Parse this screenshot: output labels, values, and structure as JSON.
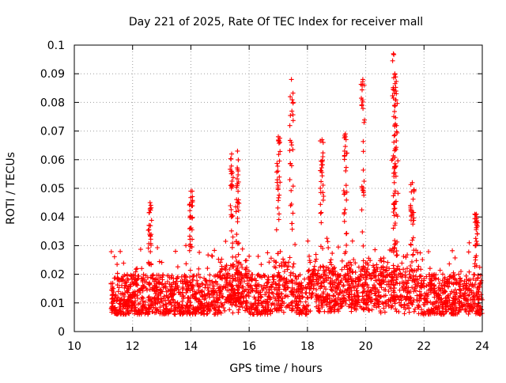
{
  "chart_data": {
    "type": "scatter",
    "title": "Day 221 of 2025, Rate Of TEC Index for receiver mall",
    "xlabel": "GPS time / hours",
    "ylabel": "ROTI / TECUs",
    "xlim": [
      10,
      24
    ],
    "ylim": [
      0,
      0.1
    ],
    "xticks": [
      "10",
      "12",
      "14",
      "16",
      "18",
      "20",
      "22",
      "24"
    ],
    "yticks": [
      "0",
      "0.01",
      "0.02",
      "0.03",
      "0.04",
      "0.05",
      "0.06",
      "0.07",
      "0.08",
      "0.09",
      "0.1"
    ],
    "grid": true,
    "marker": "+",
    "color": "#ff0000",
    "series": [
      {
        "name": "ROTI",
        "data_start_hour": 11.25,
        "data_end_hour": 24.0,
        "typical_range": [
          0.003,
          0.03
        ],
        "peaks": [
          {
            "x": 12.6,
            "y": 0.045
          },
          {
            "x": 14.0,
            "y": 0.049
          },
          {
            "x": 15.4,
            "y": 0.062
          },
          {
            "x": 15.6,
            "y": 0.063
          },
          {
            "x": 17.0,
            "y": 0.068
          },
          {
            "x": 17.45,
            "y": 0.088
          },
          {
            "x": 18.5,
            "y": 0.067
          },
          {
            "x": 19.3,
            "y": 0.069
          },
          {
            "x": 19.9,
            "y": 0.088
          },
          {
            "x": 20.95,
            "y": 0.097
          },
          {
            "x": 21.0,
            "y": 0.09
          },
          {
            "x": 21.05,
            "y": 0.083
          },
          {
            "x": 21.6,
            "y": 0.052
          },
          {
            "x": 23.8,
            "y": 0.041
          }
        ]
      }
    ]
  }
}
